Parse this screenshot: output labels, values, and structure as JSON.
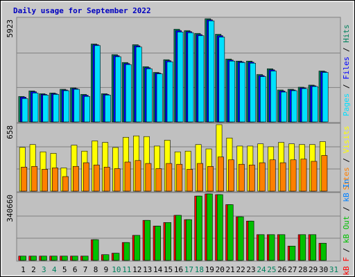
{
  "title": "Daily usage for September 2022",
  "categories": [
    "1",
    "2",
    "3",
    "4",
    "5",
    "6",
    "7",
    "8",
    "9",
    "10",
    "11",
    "12",
    "13",
    "14",
    "15",
    "16",
    "17",
    "18",
    "19",
    "20",
    "21",
    "22",
    "23",
    "24",
    "25",
    "26",
    "27",
    "28",
    "29",
    "30",
    "31"
  ],
  "category_colors": [
    "#000000",
    "#000000",
    "#00805c",
    "#00805c",
    "#000000",
    "#000000",
    "#000000",
    "#000000",
    "#000000",
    "#00805c",
    "#00805c",
    "#000000",
    "#000000",
    "#000000",
    "#000000",
    "#000000",
    "#00805c",
    "#00805c",
    "#000000",
    "#000000",
    "#000000",
    "#000000",
    "#000000",
    "#00805c",
    "#00805c",
    "#000000",
    "#000000",
    "#000000",
    "#000000",
    "#000000",
    "#00805c"
  ],
  "separator": " / ",
  "chart_data": [
    {
      "type": "bar",
      "ylim": [
        0,
        5923
      ],
      "yticks": [
        5923
      ],
      "grid_divisions": 3,
      "legend_reversed": true,
      "series": [
        {
          "name": "Hits",
          "color": "#00805c",
          "values": [
            1460,
            1780,
            1620,
            1660,
            1870,
            1950,
            1580,
            4470,
            1620,
            3860,
            3410,
            4430,
            3170,
            2840,
            3570,
            5320,
            5240,
            5080,
            5923,
            5030,
            3610,
            3490,
            3490,
            2720,
            3050,
            1830,
            1870,
            1990,
            2110,
            2920,
            0
          ]
        },
        {
          "name": "Files",
          "color": "#0000ff",
          "values": [
            1420,
            1730,
            1580,
            1620,
            1830,
            1910,
            1530,
            4430,
            1580,
            3800,
            3350,
            4370,
            3110,
            2800,
            3510,
            5240,
            5180,
            5010,
            5860,
            4950,
            3550,
            3450,
            3430,
            2660,
            2990,
            1770,
            1830,
            1950,
            2070,
            2880,
            0
          ]
        },
        {
          "name": "Pages",
          "color": "#00e0ff",
          "values": [
            1340,
            1660,
            1540,
            1580,
            1790,
            1870,
            1460,
            4380,
            1540,
            3740,
            3290,
            4300,
            3050,
            2760,
            3450,
            5160,
            5120,
            4950,
            5800,
            4870,
            3490,
            3410,
            3370,
            2600,
            2920,
            1710,
            1790,
            1910,
            2030,
            2840,
            0
          ]
        }
      ]
    },
    {
      "type": "bar",
      "ylim": [
        0,
        658
      ],
      "yticks": [
        658
      ],
      "grid_divisions": 3,
      "legend_reversed": true,
      "series": [
        {
          "name": "Visits",
          "color": "#ffff00",
          "values": [
            433,
            461,
            389,
            374,
            230,
            455,
            396,
            497,
            482,
            432,
            533,
            547,
            540,
            446,
            504,
            389,
            396,
            461,
            418,
            658,
            526,
            446,
            446,
            468,
            439,
            482,
            468,
            461,
            461,
            490,
            0
          ]
        },
        {
          "name": "Sites",
          "color": "#ff8000",
          "values": [
            238,
            245,
            216,
            230,
            144,
            245,
            281,
            259,
            238,
            223,
            288,
            303,
            274,
            223,
            274,
            266,
            216,
            274,
            245,
            338,
            310,
            266,
            259,
            281,
            310,
            281,
            310,
            317,
            295,
            353,
            0
          ]
        }
      ]
    },
    {
      "type": "bar",
      "ylim": [
        0,
        340660
      ],
      "yticks": [
        340660
      ],
      "grid_divisions": 3,
      "legend_reversed": false,
      "series": [
        {
          "name": "kB F",
          "color": "#ff0000",
          "values": [
            22000,
            22000,
            22000,
            22000,
            22000,
            22000,
            22000,
            106200,
            29300,
            36600,
            91600,
            128200,
            205100,
            175800,
            194100,
            230800,
            208800,
            329700,
            340660,
            337000,
            285700,
            223400,
            201500,
            131900,
            131900,
            131900,
            73300,
            131900,
            131900,
            87900,
            0
          ]
        },
        {
          "name": "kB Out",
          "color": "#00c000",
          "values": [
            22000,
            22000,
            22000,
            22000,
            22000,
            22000,
            22000,
            106200,
            29300,
            36600,
            91600,
            128200,
            205100,
            175800,
            194100,
            230800,
            208800,
            329700,
            340660,
            337000,
            285700,
            223400,
            201500,
            131900,
            131900,
            131900,
            73300,
            131900,
            131900,
            87900,
            0
          ]
        },
        {
          "name": "kB In",
          "color": "#0080ff",
          "values": [
            0,
            0,
            0,
            0,
            0,
            0,
            0,
            0,
            0,
            0,
            0,
            0,
            0,
            0,
            0,
            0,
            0,
            0,
            0,
            0,
            0,
            0,
            0,
            0,
            0,
            0,
            0,
            0,
            0,
            0,
            0
          ]
        }
      ]
    }
  ]
}
